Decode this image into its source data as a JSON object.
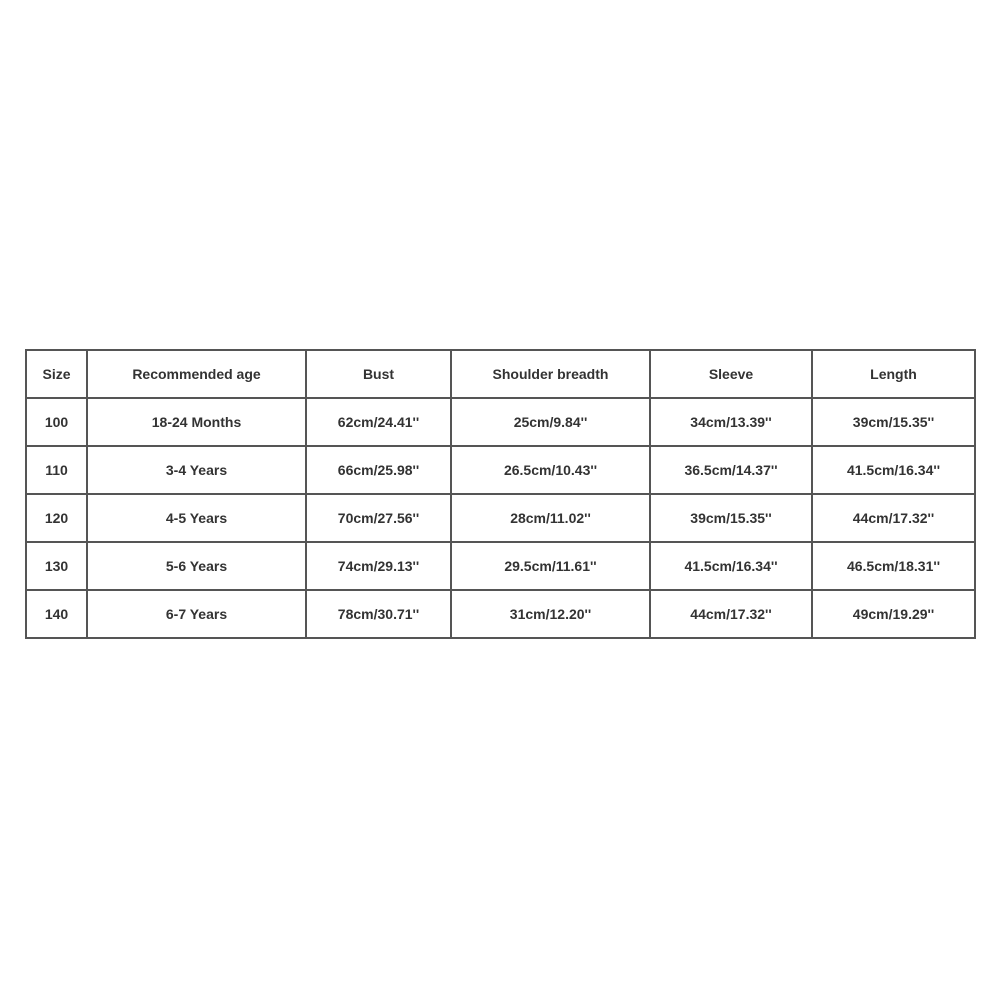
{
  "table": {
    "headers": [
      "Size",
      "Recommended age",
      "Bust",
      "Shoulder breadth",
      "Sleeve",
      "Length"
    ],
    "rows": [
      [
        "100",
        "18-24 Months",
        "62cm/24.41''",
        "25cm/9.84''",
        "34cm/13.39''",
        "39cm/15.35''"
      ],
      [
        "110",
        "3-4 Years",
        "66cm/25.98''",
        "26.5cm/10.43''",
        "36.5cm/14.37''",
        "41.5cm/16.34''"
      ],
      [
        "120",
        "4-5 Years",
        "70cm/27.56''",
        "28cm/11.02''",
        "39cm/15.35''",
        "44cm/17.32''"
      ],
      [
        "130",
        "5-6 Years",
        "74cm/29.13''",
        "29.5cm/11.61''",
        "41.5cm/16.34''",
        "46.5cm/18.31''"
      ],
      [
        "140",
        "6-7 Years",
        "78cm/30.71''",
        "31cm/12.20''",
        "44cm/17.32''",
        "49cm/19.29''"
      ]
    ]
  }
}
